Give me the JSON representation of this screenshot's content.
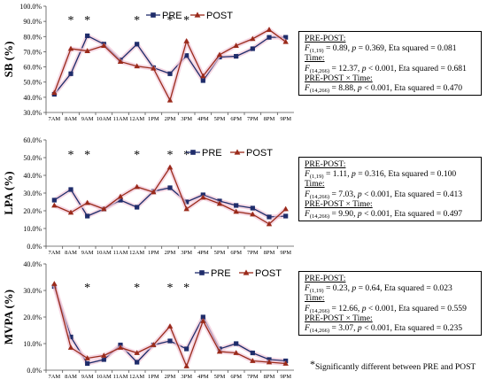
{
  "chart_data": [
    {
      "type": "line",
      "ylabel": "SB (%)",
      "ylim": [
        30,
        100
      ],
      "yticks": [
        "30.0%",
        "40.0%",
        "50.0%",
        "60.0%",
        "70.0%",
        "80.0%",
        "90.0%",
        "100.0%"
      ],
      "categories": [
        "7AM",
        "8AM",
        "9AM",
        "10AM",
        "11AM",
        "12AM",
        "1PM",
        "2PM",
        "3PM",
        "4PM",
        "5PM",
        "6PM",
        "7PM",
        "8PM",
        "9PM"
      ],
      "legend_position": "top-center",
      "series": [
        {
          "name": "PRE",
          "color": "#1f2d6b",
          "marker": "square",
          "values": [
            42,
            55.5,
            80.5,
            75,
            64.5,
            75,
            59.5,
            55.5,
            67.5,
            51,
            66.5,
            67,
            72,
            79.5,
            79.5
          ]
        },
        {
          "name": "POST",
          "color": "#9a2a1a",
          "marker": "triangle",
          "values": [
            43,
            72,
            70.5,
            74,
            63.5,
            60.5,
            59,
            38,
            77,
            54,
            68,
            74,
            78.5,
            84.5,
            76.5
          ]
        }
      ],
      "significant": [
        "8AM",
        "9AM",
        "12AM",
        "2PM",
        "3PM"
      ],
      "stats": {
        "h1": "PRE-POST:",
        "l1a": "F",
        "l1s": "(1,19)",
        "l1b": " = 0.89, ",
        "l1p": "p",
        "l1c": " = 0.369, Eta squared = 0.081",
        "h2": "Time:",
        "l2a": "F",
        "l2s": "(14,266)",
        "l2b": " = 12.37, ",
        "l2p": "p",
        "l2c": " < 0.001, Eta squared = 0.681",
        "h3": "PRE-POST × Time:",
        "l3a": "F",
        "l3s": "(14,266)",
        "l3b": " = 8.88, ",
        "l3p": "p",
        "l3c": " < 0.001, Eta squared = 0.470"
      }
    },
    {
      "type": "line",
      "ylabel": "LPA (%)",
      "ylim": [
        0,
        60
      ],
      "yticks": [
        "0.0%",
        "10.0%",
        "20.0%",
        "30.0%",
        "40.0%",
        "50.0%",
        "60.0%"
      ],
      "categories": [
        "7AM",
        "8AM",
        "9AM",
        "10AM",
        "11AM",
        "12AM",
        "1PM",
        "2PM",
        "3PM",
        "4PM",
        "5PM",
        "6PM",
        "7PM",
        "8PM",
        "9PM"
      ],
      "legend_position": "top-right",
      "series": [
        {
          "name": "PRE",
          "color": "#1f2d6b",
          "marker": "square",
          "values": [
            26,
            32,
            17,
            21,
            26,
            22,
            31,
            33,
            25,
            29,
            25.5,
            23,
            21.5,
            16.5,
            17
          ]
        },
        {
          "name": "POST",
          "color": "#9a2a1a",
          "marker": "triangle",
          "values": [
            23,
            19,
            24.5,
            21,
            28,
            33.5,
            30.5,
            44.5,
            21,
            27.5,
            24,
            19.5,
            18,
            12.5,
            21
          ]
        }
      ],
      "significant": [
        "8AM",
        "9AM",
        "12AM",
        "2PM",
        "3PM"
      ],
      "stats": {
        "h1": "PRE-POST:",
        "l1a": "F",
        "l1s": "(1,19)",
        "l1b": " = 1.11, ",
        "l1p": "p",
        "l1c": " = 0.316, Eta squared = 0.100",
        "h2": "Time:",
        "l2a": "F",
        "l2s": "(14,266)",
        "l2b": " = 7.03, ",
        "l2p": "p",
        "l2c": " < 0.001, Eta squared = 0.413",
        "h3": "PRE-POST × Time:",
        "l3a": "F",
        "l3s": "(14,266)",
        "l3b": " = 9.90, ",
        "l3p": "p",
        "l3c": " < 0.001, Eta squared = 0.497"
      }
    },
    {
      "type": "line",
      "ylabel": "MVPA (%)",
      "ylim": [
        0,
        40
      ],
      "yticks": [
        "0.0%",
        "10.0%",
        "20.0%",
        "30.0%",
        "40.0%"
      ],
      "categories": [
        "7AM",
        "8AM",
        "9AM",
        "10AM",
        "11AM",
        "12AM",
        "1PM",
        "2PM",
        "3PM",
        "4PM",
        "5PM",
        "6PM",
        "7PM",
        "8PM",
        "9PM"
      ],
      "legend_position": "top-right",
      "series": [
        {
          "name": "PRE",
          "color": "#1f2d6b",
          "marker": "square",
          "values": [
            31.5,
            12.5,
            2.5,
            4,
            9.5,
            3,
            9.5,
            11,
            8,
            20,
            8,
            10,
            6.5,
            4,
            3.5
          ]
        },
        {
          "name": "POST",
          "color": "#9a2a1a",
          "marker": "triangle",
          "values": [
            32.5,
            8.5,
            4.5,
            5.5,
            8.5,
            6.5,
            9.5,
            16.5,
            1.5,
            18.5,
            7,
            6.5,
            3.5,
            3,
            2.5
          ]
        }
      ],
      "significant": [
        "9AM",
        "12AM",
        "2PM",
        "3PM"
      ],
      "stats": {
        "h1": "PRE-POST:",
        "l1a": "F",
        "l1s": "(1,19)",
        "l1b": " = 0.23, ",
        "l1p": "p",
        "l1c": " = 0.64, Eta squared = 0.023",
        "h2": "Time:",
        "l2a": "F",
        "l2s": "(14,266)",
        "l2b": " = 12.66, ",
        "l2p": "p",
        "l2c": " < 0.001, Eta squared = 0.559",
        "h3": "PRE-POST × Time:",
        "l3a": "F",
        "l3s": "(14,266)",
        "l3b": " = 3.07, ",
        "l3p": "p",
        "l3c": " < 0.001, Eta squared = 0.235"
      }
    }
  ],
  "footnote": {
    "symbol": "*",
    "text": "Significantly different between PRE and POST"
  }
}
